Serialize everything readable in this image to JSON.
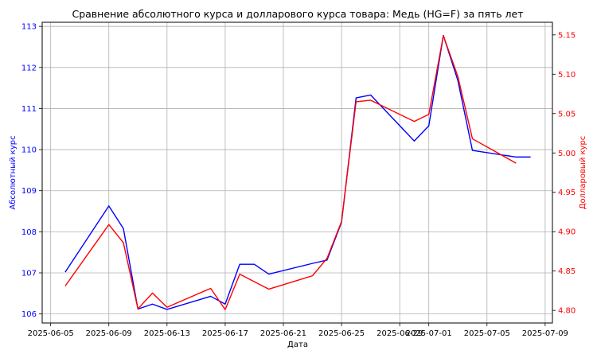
{
  "chart_data": {
    "type": "line",
    "title": "Сравнение абсолютного курса и долларового курса товара: Медь (HG=F) за пять лет",
    "xlabel": "Дата",
    "ylabel_left": "Абсолютный курс",
    "ylabel_right": "Долларовый курс",
    "grid": true,
    "x_ticks": [
      "2025-06-05",
      "2025-06-09",
      "2025-06-13",
      "2025-06-17",
      "2025-06-21",
      "2025-06-25",
      "2025-06-29",
      "2025-07-01",
      "2025-07-05",
      "2025-07-09"
    ],
    "x_range": [
      "2025-06-04T10:00",
      "2025-07-09T12:00"
    ],
    "y_left_ticks": [
      106,
      107,
      108,
      109,
      110,
      111,
      112,
      113
    ],
    "y_left_range": [
      105.78,
      113.1
    ],
    "y_right_ticks": [
      "4.80",
      "4.85",
      "4.90",
      "4.95",
      "5.00",
      "5.05",
      "5.10",
      "5.15"
    ],
    "y_right_range": [
      4.784,
      5.166
    ],
    "series": [
      {
        "axis": "left",
        "color": "#0000ff",
        "points": [
          [
            "2025-06-06",
            107.02
          ],
          [
            "2025-06-09",
            108.63
          ],
          [
            "2025-06-10",
            108.08
          ],
          [
            "2025-06-11",
            106.12
          ],
          [
            "2025-06-12",
            106.24
          ],
          [
            "2025-06-13",
            106.11
          ],
          [
            "2025-06-16",
            106.43
          ],
          [
            "2025-06-17",
            106.24
          ],
          [
            "2025-06-18",
            107.21
          ],
          [
            "2025-06-19",
            107.21
          ],
          [
            "2025-06-20",
            106.97
          ],
          [
            "2025-06-23",
            107.23
          ],
          [
            "2025-06-24",
            107.31
          ],
          [
            "2025-06-25",
            108.23
          ],
          [
            "2025-06-26",
            111.26
          ],
          [
            "2025-06-27",
            111.33
          ],
          [
            "2025-06-30",
            110.21
          ],
          [
            "2025-07-01",
            110.58
          ],
          [
            "2025-07-02",
            112.78
          ],
          [
            "2025-07-03",
            111.68
          ],
          [
            "2025-07-04",
            109.98
          ],
          [
            "2025-07-07",
            109.82
          ],
          [
            "2025-07-08",
            109.82
          ]
        ]
      },
      {
        "axis": "right",
        "color": "#ff0000",
        "points": [
          [
            "2025-06-06",
            4.831
          ],
          [
            "2025-06-09",
            4.909
          ],
          [
            "2025-06-10",
            4.886
          ],
          [
            "2025-06-11",
            4.802
          ],
          [
            "2025-06-12",
            4.822
          ],
          [
            "2025-06-13",
            4.804
          ],
          [
            "2025-06-16",
            4.828
          ],
          [
            "2025-06-17",
            4.801
          ],
          [
            "2025-06-18",
            4.846
          ],
          [
            "2025-06-20",
            4.827
          ],
          [
            "2025-06-23",
            4.844
          ],
          [
            "2025-06-24",
            4.866
          ],
          [
            "2025-06-25",
            4.913
          ],
          [
            "2025-06-26",
            5.065
          ],
          [
            "2025-06-27",
            5.067
          ],
          [
            "2025-06-30",
            5.04
          ],
          [
            "2025-07-01",
            5.049
          ],
          [
            "2025-07-02",
            5.149
          ],
          [
            "2025-07-03",
            5.097
          ],
          [
            "2025-07-04",
            5.018
          ],
          [
            "2025-07-07",
            4.987
          ]
        ]
      }
    ],
    "colors": {
      "left_axis": "#0000ff",
      "right_axis": "#ff0000",
      "grid": "#b0b0b0"
    }
  }
}
